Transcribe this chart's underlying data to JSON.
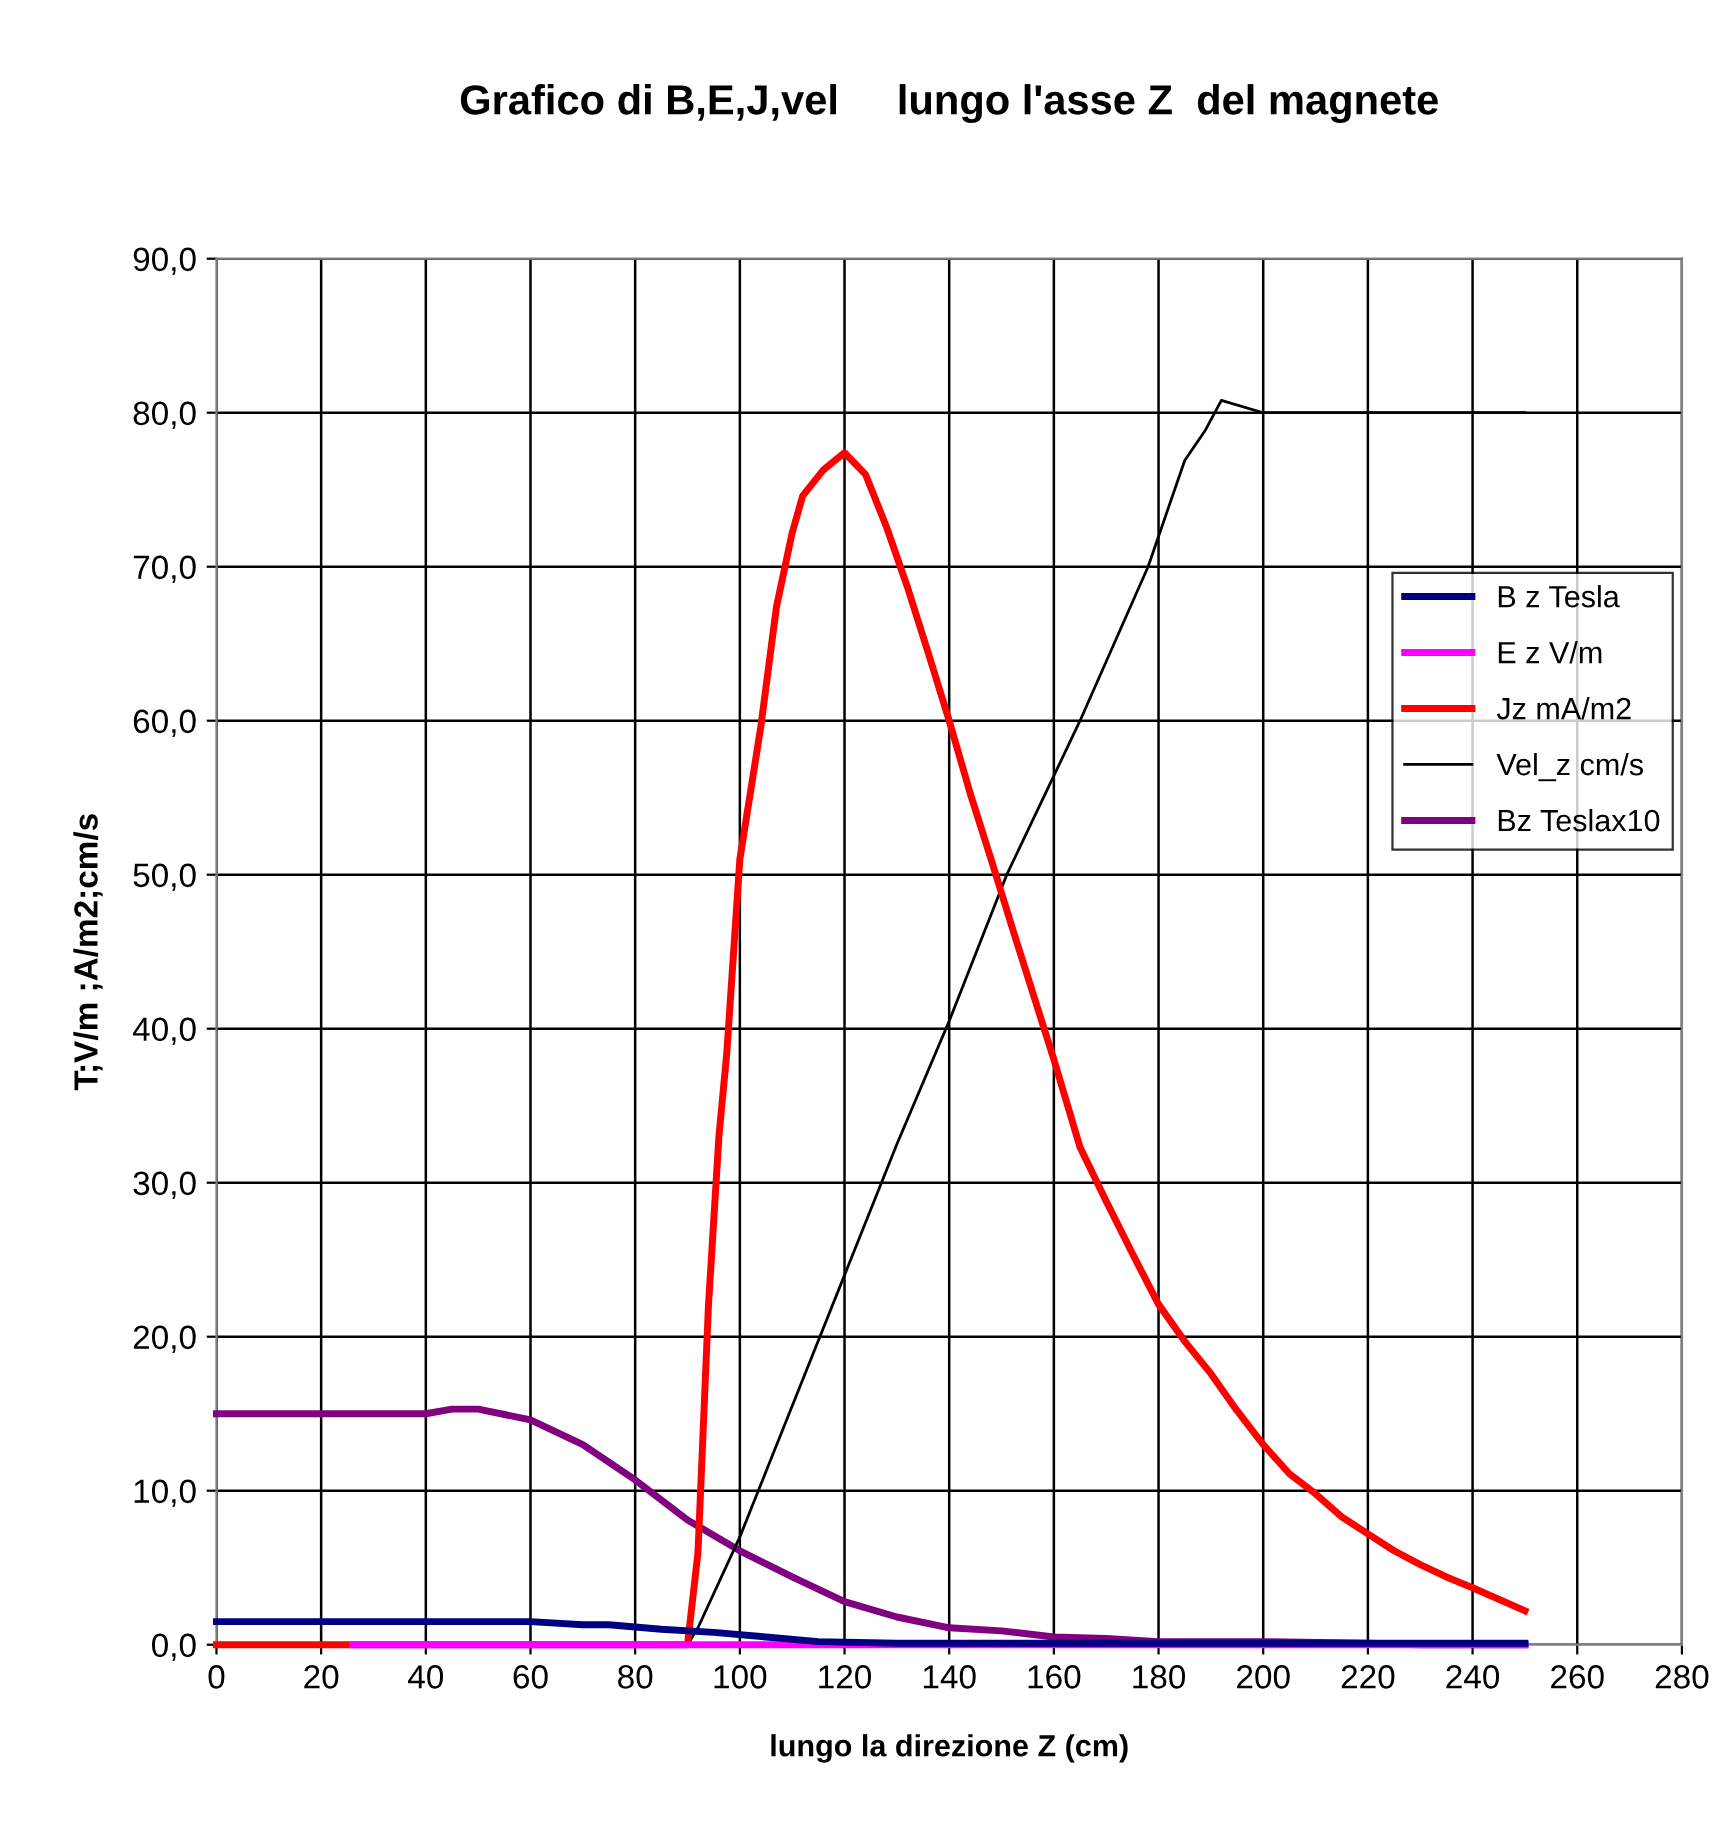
{
  "chart_data": {
    "type": "line",
    "title": "Grafico di B,E,J,vel     lungo l'asse Z  del magnete",
    "xlabel": "lungo la direzione Z (cm)",
    "ylabel": "T;V/m ;A/m2;cm/s",
    "xlim": [
      0,
      280
    ],
    "xticks": [
      0,
      20,
      40,
      60,
      80,
      100,
      120,
      140,
      160,
      180,
      200,
      220,
      240,
      260,
      280
    ],
    "ylim": [
      0,
      90
    ],
    "yticks": [
      {
        "value": 0,
        "label": "0,0"
      },
      {
        "value": 10,
        "label": "10,0"
      },
      {
        "value": 20,
        "label": "20,0"
      },
      {
        "value": 30,
        "label": "30,0"
      },
      {
        "value": 40,
        "label": "40,0"
      },
      {
        "value": 50,
        "label": "50,0"
      },
      {
        "value": 60,
        "label": "60,0"
      },
      {
        "value": 70,
        "label": "70,0"
      },
      {
        "value": 80,
        "label": "80,0"
      },
      {
        "value": 90,
        "label": "90,0"
      }
    ],
    "grid": true,
    "legend": "right",
    "marker": "none",
    "series": [
      {
        "name": "B z Tesla",
        "color": "#000080",
        "x": [
          0,
          40,
          60,
          70,
          75,
          85,
          95,
          105,
          115,
          130,
          150,
          250
        ],
        "values": [
          1.5,
          1.5,
          1.5,
          1.3,
          1.3,
          1.0,
          0.8,
          0.5,
          0.2,
          0.1,
          0.1,
          0.1
        ]
      },
      {
        "name": "E z V/m",
        "color": "#ff00ff",
        "x": [
          26,
          100,
          250
        ],
        "values": [
          0,
          0,
          0
        ]
      },
      {
        "name": "Jz mA/m2",
        "color": "#ff0000",
        "x": [
          0,
          90,
          92,
          94,
          96,
          97.5,
          100,
          104,
          107,
          110,
          112,
          116,
          120,
          124,
          128,
          132,
          136,
          140,
          144,
          148,
          152,
          156,
          160,
          165,
          170,
          175,
          180,
          185,
          190,
          195,
          200,
          205,
          210,
          215,
          220,
          225,
          230,
          235,
          240,
          250
        ],
        "values": [
          0,
          0,
          6,
          22,
          33,
          38.4,
          51,
          59.6,
          67.4,
          72.2,
          74.6,
          76.3,
          77.4,
          76,
          72.6,
          68.7,
          64.4,
          60,
          55.3,
          51,
          46.6,
          42.3,
          38,
          32.3,
          28.8,
          25.4,
          22.1,
          19.7,
          17.6,
          15.2,
          13,
          11.1,
          9.8,
          8.3,
          7.2,
          6.1,
          5.2,
          4.4,
          3.7,
          2.2
        ]
      },
      {
        "name": "Vel_z cm/s",
        "color": "#000000",
        "x": [
          0,
          90,
          92,
          100,
          110,
          120,
          130,
          140,
          151,
          165,
          178,
          185,
          189,
          192,
          200,
          250
        ],
        "values": [
          0,
          0,
          1.1,
          7,
          15.5,
          24,
          32.5,
          40.5,
          50,
          60,
          70,
          76.9,
          78.9,
          80.8,
          80,
          80
        ]
      },
      {
        "name": "Bz Teslax10",
        "color": "#800080",
        "x": [
          0,
          40,
          45,
          50,
          60,
          70,
          80,
          90,
          100,
          110,
          120,
          130,
          140,
          150,
          160,
          170,
          180,
          200,
          220,
          230,
          250
        ],
        "values": [
          15,
          15,
          15.3,
          15.3,
          14.6,
          13,
          10.7,
          8.1,
          6.1,
          4.4,
          2.8,
          1.8,
          1.1,
          0.9,
          0.5,
          0.4,
          0.2,
          0.2,
          0.1,
          0,
          0
        ]
      }
    ]
  }
}
